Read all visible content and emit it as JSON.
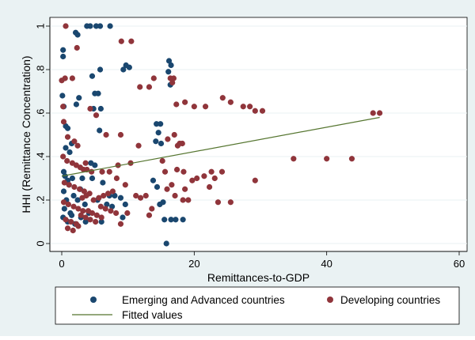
{
  "chart_data": {
    "type": "scatter",
    "xlabel": "Remittances-to-GDP",
    "ylabel": "HHI (Remittance Concentration)",
    "xlim": [
      0,
      60
    ],
    "ylim": [
      0,
      1
    ],
    "xticks": [
      "0",
      "20",
      "40",
      "60"
    ],
    "xtick_values": [
      0,
      20,
      40,
      60
    ],
    "yticks": [
      "0",
      ".2",
      ".4",
      ".6",
      ".8",
      "1"
    ],
    "ytick_values": [
      0,
      0.2,
      0.4,
      0.6,
      0.8,
      1
    ],
    "grid": true,
    "legend_position": "bottom",
    "colors": {
      "background": "#eaf2f3",
      "plot_bg": "#ffffff",
      "grid": "#eaf2f3",
      "emerging": "#1a476f",
      "developing": "#90353b",
      "fit": "#55752f"
    },
    "series": [
      {
        "name": "Emerging and Advanced countries",
        "points": [
          [
            0.2,
            0.89
          ],
          [
            0.2,
            0.86
          ],
          [
            0.1,
            0.68
          ],
          [
            0.3,
            0.63
          ],
          [
            0.6,
            0.54
          ],
          [
            0.9,
            0.53
          ],
          [
            1.5,
            0.46
          ],
          [
            0.6,
            0.44
          ],
          [
            1.2,
            0.42
          ],
          [
            0.3,
            0.33
          ],
          [
            0.5,
            0.31
          ],
          [
            0.9,
            0.29
          ],
          [
            1.6,
            0.3
          ],
          [
            1.1,
            0.27
          ],
          [
            0.3,
            0.24
          ],
          [
            1.8,
            0.22
          ],
          [
            0.7,
            0.2
          ],
          [
            0.4,
            0.16
          ],
          [
            1.3,
            0.14
          ],
          [
            0.2,
            0.12
          ],
          [
            0.9,
            0.1
          ],
          [
            2.0,
            0.09
          ],
          [
            1.5,
            0.13
          ],
          [
            2.1,
            0.97
          ],
          [
            2.4,
            0.96
          ],
          [
            2.6,
            0.67
          ],
          [
            2.2,
            0.64
          ],
          [
            3.1,
            0.3
          ],
          [
            2.8,
            0.25
          ],
          [
            3.5,
            0.18
          ],
          [
            2.9,
            0.12
          ],
          [
            3.6,
            0.1
          ],
          [
            2.4,
            0.2
          ],
          [
            3.8,
            1.0
          ],
          [
            4.3,
            1.0
          ],
          [
            5.2,
            1.0
          ],
          [
            5.8,
            1.0
          ],
          [
            7.3,
            1.0
          ],
          [
            4.6,
            0.77
          ],
          [
            5.8,
            0.8
          ],
          [
            5.0,
            0.69
          ],
          [
            5.5,
            0.69
          ],
          [
            4.8,
            0.62
          ],
          [
            5.9,
            0.62
          ],
          [
            5.7,
            0.52
          ],
          [
            4.4,
            0.37
          ],
          [
            5.0,
            0.36
          ],
          [
            4.6,
            0.3
          ],
          [
            6.2,
            0.28
          ],
          [
            5.4,
            0.2
          ],
          [
            6.8,
            0.18
          ],
          [
            7.6,
            0.17
          ],
          [
            4.1,
            0.14
          ],
          [
            6.0,
            0.1
          ],
          [
            7.2,
            0.22
          ],
          [
            8.0,
            0.22
          ],
          [
            9.3,
            0.8
          ],
          [
            9.7,
            0.82
          ],
          [
            10.2,
            0.81
          ],
          [
            8.9,
            0.21
          ],
          [
            9.6,
            0.18
          ],
          [
            9.2,
            0.12
          ],
          [
            14.3,
            0.55
          ],
          [
            14.9,
            0.55
          ],
          [
            14.6,
            0.51
          ],
          [
            14.2,
            0.47
          ],
          [
            15.0,
            0.46
          ],
          [
            13.8,
            0.29
          ],
          [
            14.4,
            0.26
          ],
          [
            14.8,
            0.18
          ],
          [
            15.3,
            0.19
          ],
          [
            15.5,
            0.11
          ],
          [
            16.5,
            0.11
          ],
          [
            17.2,
            0.11
          ],
          [
            18.3,
            0.11
          ],
          [
            16.2,
            0.84
          ],
          [
            16.5,
            0.82
          ],
          [
            16.1,
            0.79
          ],
          [
            16.4,
            0.73
          ],
          [
            15.8,
            0.0
          ]
        ]
      },
      {
        "name": "Developing countries",
        "points": [
          [
            0.6,
            1.0
          ],
          [
            0.0,
            0.75
          ],
          [
            0.5,
            0.76
          ],
          [
            1.6,
            0.76
          ],
          [
            0.2,
            0.63
          ],
          [
            0.3,
            0.56
          ],
          [
            0.9,
            0.49
          ],
          [
            1.9,
            0.47
          ],
          [
            2.4,
            0.45
          ],
          [
            0.2,
            0.4
          ],
          [
            0.8,
            0.38
          ],
          [
            1.6,
            0.37
          ],
          [
            2.2,
            0.36
          ],
          [
            2.8,
            0.35
          ],
          [
            3.3,
            0.34
          ],
          [
            3.8,
            0.34
          ],
          [
            4.5,
            0.33
          ],
          [
            0.4,
            0.28
          ],
          [
            1.1,
            0.27
          ],
          [
            1.9,
            0.26
          ],
          [
            2.7,
            0.25
          ],
          [
            3.4,
            0.24
          ],
          [
            4.2,
            0.23
          ],
          [
            0.3,
            0.19
          ],
          [
            1.0,
            0.18
          ],
          [
            1.8,
            0.17
          ],
          [
            2.5,
            0.16
          ],
          [
            3.2,
            0.15
          ],
          [
            4.0,
            0.15
          ],
          [
            4.6,
            0.14
          ],
          [
            5.3,
            0.13
          ],
          [
            6.0,
            0.12
          ],
          [
            0.6,
            0.11
          ],
          [
            1.4,
            0.1
          ],
          [
            2.2,
            0.09
          ],
          [
            2.9,
            0.13
          ],
          [
            3.6,
            0.12
          ],
          [
            4.3,
            0.11
          ],
          [
            5.1,
            0.1
          ],
          [
            5.9,
            0.17
          ],
          [
            6.6,
            0.16
          ],
          [
            7.4,
            0.15
          ],
          [
            8.2,
            0.14
          ],
          [
            0.9,
            0.07
          ],
          [
            1.7,
            0.06
          ],
          [
            2.5,
            0.08
          ],
          [
            3.1,
            0.21
          ],
          [
            3.7,
            0.22
          ],
          [
            4.8,
            0.2
          ],
          [
            5.6,
            0.21
          ],
          [
            6.3,
            0.22
          ],
          [
            7.0,
            0.23
          ],
          [
            7.7,
            0.24
          ],
          [
            2.3,
            0.9
          ],
          [
            9.0,
            0.93
          ],
          [
            10.5,
            0.93
          ],
          [
            11.8,
            0.72
          ],
          [
            13.2,
            0.72
          ],
          [
            13.9,
            0.76
          ],
          [
            16.4,
            0.76
          ],
          [
            16.9,
            0.76
          ],
          [
            16.7,
            0.74
          ],
          [
            8.9,
            0.5
          ],
          [
            6.7,
            0.5
          ],
          [
            4.3,
            0.62
          ],
          [
            5.2,
            0.59
          ],
          [
            3.6,
            0.37
          ],
          [
            6.1,
            0.33
          ],
          [
            7.2,
            0.33
          ],
          [
            8.5,
            0.36
          ],
          [
            8.3,
            0.3
          ],
          [
            11.6,
            0.45
          ],
          [
            10.4,
            0.37
          ],
          [
            9.6,
            0.27
          ],
          [
            11.2,
            0.22
          ],
          [
            11.9,
            0.21
          ],
          [
            12.7,
            0.22
          ],
          [
            13.6,
            0.16
          ],
          [
            13.2,
            0.13
          ],
          [
            9.9,
            0.14
          ],
          [
            8.9,
            0.09
          ],
          [
            15.2,
            0.38
          ],
          [
            16.0,
            0.48
          ],
          [
            17.0,
            0.5
          ],
          [
            17.5,
            0.45
          ],
          [
            17.4,
            0.34
          ],
          [
            17.8,
            0.46
          ],
          [
            18.2,
            0.46
          ],
          [
            15.6,
            0.33
          ],
          [
            16.6,
            0.27
          ],
          [
            15.9,
            0.25
          ],
          [
            17.1,
            0.22
          ],
          [
            18.3,
            0.2
          ],
          [
            17.3,
            0.64
          ],
          [
            18.6,
            0.65
          ],
          [
            20.0,
            0.63
          ],
          [
            21.7,
            0.63
          ],
          [
            18.4,
            0.33
          ],
          [
            18.6,
            0.25
          ],
          [
            19.1,
            0.2
          ],
          [
            19.7,
            0.29
          ],
          [
            20.4,
            0.3
          ],
          [
            21.5,
            0.31
          ],
          [
            22.6,
            0.33
          ],
          [
            23.1,
            0.3
          ],
          [
            24.2,
            0.33
          ],
          [
            22.3,
            0.26
          ],
          [
            23.6,
            0.19
          ],
          [
            25.5,
            0.19
          ],
          [
            24.3,
            0.67
          ],
          [
            25.5,
            0.65
          ],
          [
            27.4,
            0.63
          ],
          [
            28.4,
            0.63
          ],
          [
            29.2,
            0.61
          ],
          [
            30.3,
            0.61
          ],
          [
            29.2,
            0.29
          ],
          [
            35.0,
            0.39
          ],
          [
            40.0,
            0.39
          ],
          [
            43.8,
            0.39
          ],
          [
            47.0,
            0.6
          ],
          [
            48.0,
            0.6
          ]
        ]
      }
    ],
    "fitted": {
      "name": "Fitted values",
      "points": [
        [
          0,
          0.31
        ],
        [
          48,
          0.58
        ]
      ]
    }
  }
}
